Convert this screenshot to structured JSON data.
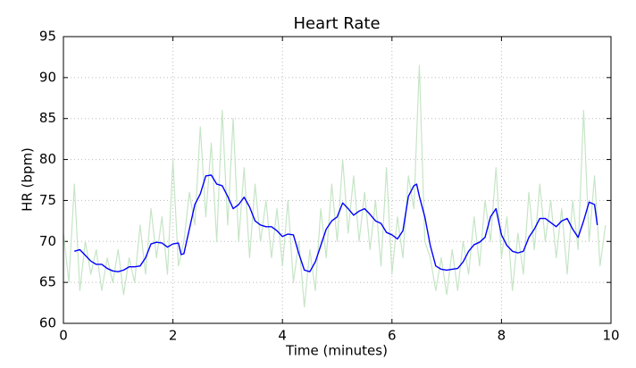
{
  "chart_data": {
    "type": "line",
    "title": "Heart Rate",
    "xlabel": "Time (minutes)",
    "ylabel": "HR (bpm)",
    "xlim": [
      0,
      10
    ],
    "xticks": [
      0,
      2,
      4,
      6,
      8,
      10
    ],
    "ylim": [
      60,
      95
    ],
    "yticks": [
      60,
      65,
      70,
      75,
      80,
      85,
      90,
      95
    ],
    "grid": true,
    "series": [
      {
        "color": "#c6e5c6",
        "x": [
          0.0,
          0.1,
          0.2,
          0.3,
          0.4,
          0.5,
          0.6,
          0.7,
          0.8,
          0.9,
          1.0,
          1.1,
          1.2,
          1.3,
          1.4,
          1.5,
          1.6,
          1.7,
          1.8,
          1.9,
          2.0,
          2.1,
          2.2,
          2.3,
          2.4,
          2.5,
          2.6,
          2.7,
          2.8,
          2.9,
          3.0,
          3.1,
          3.2,
          3.3,
          3.4,
          3.5,
          3.6,
          3.7,
          3.8,
          3.9,
          4.0,
          4.1,
          4.2,
          4.3,
          4.4,
          4.5,
          4.6,
          4.7,
          4.8,
          4.9,
          5.0,
          5.1,
          5.2,
          5.3,
          5.4,
          5.5,
          5.6,
          5.7,
          5.8,
          5.9,
          6.0,
          6.1,
          6.2,
          6.3,
          6.4,
          6.5,
          6.6,
          6.7,
          6.8,
          6.9,
          7.0,
          7.1,
          7.2,
          7.3,
          7.4,
          7.5,
          7.6,
          7.7,
          7.8,
          7.9,
          8.0,
          8.1,
          8.2,
          8.3,
          8.4,
          8.5,
          8.6,
          8.7,
          8.8,
          8.9,
          9.0,
          9.1,
          9.2,
          9.3,
          9.4,
          9.5,
          9.6,
          9.7,
          9.8,
          9.9
        ],
        "values": [
          71,
          65,
          77,
          64,
          70,
          66,
          69,
          64,
          68,
          65,
          69,
          63.5,
          68,
          65,
          72,
          66,
          74,
          68,
          73,
          66,
          80,
          67,
          70,
          76,
          72,
          84,
          73,
          82,
          70,
          86,
          72,
          85,
          70,
          79,
          68,
          77,
          70,
          75,
          68,
          74,
          67,
          75,
          65,
          70,
          62,
          69,
          64,
          74,
          68,
          77,
          70,
          80,
          71,
          78,
          70,
          76,
          69,
          75,
          67,
          79,
          66,
          73,
          68,
          78,
          74,
          91.5,
          70,
          68,
          64,
          68,
          63.5,
          69,
          64,
          70,
          66,
          73,
          67,
          75,
          70,
          79,
          68,
          73,
          64,
          71,
          66,
          76,
          69,
          77,
          70,
          75,
          68,
          74,
          66,
          75,
          69,
          86,
          70,
          78,
          67,
          72
        ]
      },
      {
        "color": "#0000ff",
        "x": [
          0.2,
          0.3,
          0.4,
          0.5,
          0.6,
          0.7,
          0.8,
          0.9,
          1.0,
          1.1,
          1.2,
          1.3,
          1.4,
          1.5,
          1.6,
          1.7,
          1.8,
          1.9,
          2.0,
          2.1,
          2.15,
          2.2,
          2.3,
          2.4,
          2.5,
          2.6,
          2.7,
          2.8,
          2.9,
          3.0,
          3.1,
          3.2,
          3.3,
          3.4,
          3.5,
          3.6,
          3.7,
          3.8,
          3.9,
          4.0,
          4.1,
          4.2,
          4.3,
          4.4,
          4.5,
          4.6,
          4.7,
          4.8,
          4.9,
          5.0,
          5.1,
          5.2,
          5.3,
          5.4,
          5.5,
          5.6,
          5.7,
          5.8,
          5.9,
          6.0,
          6.1,
          6.2,
          6.3,
          6.4,
          6.45,
          6.5,
          6.6,
          6.7,
          6.8,
          6.9,
          7.0,
          7.1,
          7.2,
          7.3,
          7.4,
          7.5,
          7.6,
          7.7,
          7.8,
          7.9,
          8.0,
          8.1,
          8.2,
          8.3,
          8.4,
          8.5,
          8.6,
          8.7,
          8.8,
          8.9,
          9.0,
          9.1,
          9.2,
          9.3,
          9.4,
          9.5,
          9.6,
          9.7,
          9.75
        ],
        "values": [
          68.8,
          69,
          68.3,
          67.6,
          67.2,
          67.2,
          66.7,
          66.4,
          66.3,
          66.5,
          66.9,
          66.9,
          67,
          68,
          69.7,
          69.9,
          69.8,
          69.3,
          69.7,
          69.8,
          68.4,
          68.5,
          71.5,
          74.5,
          75.8,
          78,
          78.1,
          77,
          76.8,
          75.5,
          74,
          74.5,
          75.4,
          74.2,
          72.5,
          72,
          71.8,
          71.8,
          71.3,
          70.6,
          70.9,
          70.8,
          68.5,
          66.5,
          66.3,
          67.5,
          69.5,
          71.5,
          72.5,
          73,
          74.7,
          74,
          73.2,
          73.7,
          74,
          73.3,
          72.5,
          72.2,
          71.1,
          70.8,
          70.3,
          71.3,
          75.5,
          76.8,
          77,
          75.5,
          73,
          69.5,
          67,
          66.6,
          66.5,
          66.6,
          66.7,
          67.5,
          68.8,
          69.6,
          69.9,
          70.5,
          73,
          74,
          70.8,
          69.5,
          68.8,
          68.6,
          68.8,
          70.5,
          71.5,
          72.8,
          72.8,
          72.3,
          71.8,
          72.5,
          72.8,
          71.5,
          70.5,
          72.5,
          74.8,
          74.5,
          72
        ]
      }
    ]
  }
}
